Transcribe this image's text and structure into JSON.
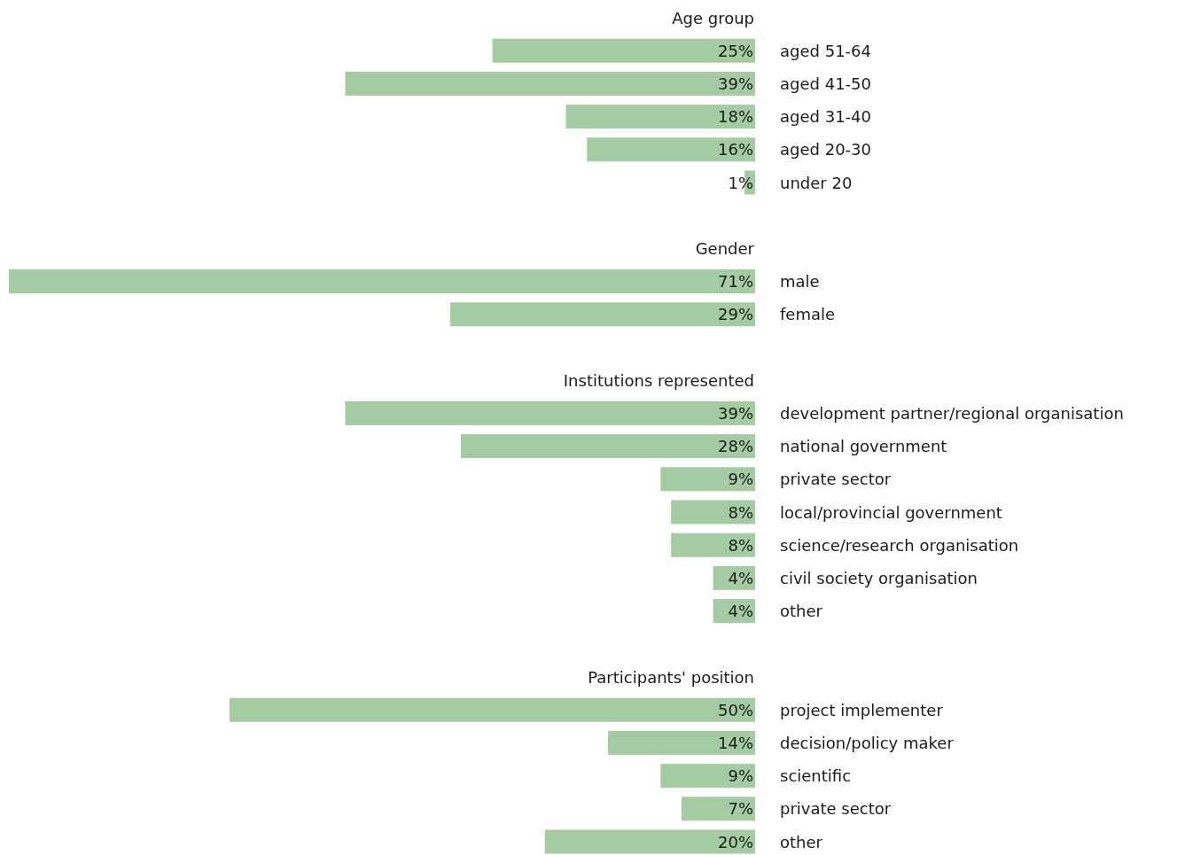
{
  "chart_data": [
    {
      "type": "bar",
      "orientation": "horizontal",
      "title": "Age group",
      "categories": [
        "aged 51-64",
        "aged 41-50",
        "aged 31-40",
        "aged 20-30",
        "under 20"
      ],
      "values": [
        25,
        39,
        18,
        16,
        1
      ],
      "value_labels": [
        "25%",
        "39%",
        "18%",
        "16%",
        "1%"
      ],
      "color": "#a5cba3",
      "tick_labels": "y"
    },
    {
      "type": "bar",
      "orientation": "horizontal",
      "title": "Gender",
      "categories": [
        "male",
        "female"
      ],
      "values": [
        71,
        29
      ],
      "value_labels": [
        "71%",
        "29%"
      ],
      "color": "#a5cba3",
      "tick_labels": "y"
    },
    {
      "type": "bar",
      "orientation": "horizontal",
      "title": "Institutions represented",
      "categories": [
        "development partner/regional organisation",
        "national government",
        "private sector",
        "local/provincial government",
        "science/research organisation",
        "civil society organisation",
        "other"
      ],
      "values": [
        39,
        28,
        9,
        8,
        8,
        4,
        4
      ],
      "value_labels": [
        "39%",
        "28%",
        "9%",
        "8%",
        "8%",
        "4%",
        "4%"
      ],
      "color": "#a5cba3",
      "tick_labels": "y"
    },
    {
      "type": "bar",
      "orientation": "horizontal",
      "title": "Participants' position",
      "categories": [
        "project implementer",
        "decision/policy maker",
        "scientific",
        "private sector",
        "other"
      ],
      "values": [
        50,
        14,
        9,
        7,
        20
      ],
      "value_labels": [
        "50%",
        "14%",
        "9%",
        "7%",
        "20%"
      ],
      "color": "#a5cba3",
      "tick_labels": "y"
    }
  ]
}
